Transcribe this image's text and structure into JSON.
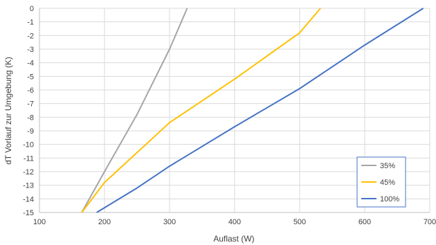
{
  "chart_data": {
    "type": "line",
    "title": "",
    "xlabel": "Auflast (W)",
    "ylabel": "dT Vorlauf zur Umgebung (K)",
    "xlim": [
      100,
      700
    ],
    "ylim": [
      -15,
      0
    ],
    "x_ticks": [
      "100",
      "200",
      "300",
      "400",
      "500",
      "600",
      "700"
    ],
    "y_ticks": [
      "0",
      "-1",
      "-2",
      "-3",
      "-4",
      "-5",
      "-6",
      "-7",
      "-8",
      "-9",
      "-10",
      "-11",
      "-12",
      "-13",
      "-14",
      "-15"
    ],
    "grid": true,
    "legend_position": "bottom-right",
    "series": [
      {
        "name": "35%",
        "color": "#a5a5a5",
        "points": [
          [
            165,
            -15
          ],
          [
            200,
            -12
          ],
          [
            250,
            -7.8
          ],
          [
            300,
            -3.0
          ],
          [
            327,
            0
          ]
        ]
      },
      {
        "name": "45%",
        "color": "#ffc000",
        "points": [
          [
            165,
            -15
          ],
          [
            200,
            -12.8
          ],
          [
            300,
            -8.4
          ],
          [
            400,
            -5.2
          ],
          [
            500,
            -1.8
          ],
          [
            532,
            0
          ]
        ]
      },
      {
        "name": "100%",
        "color": "#4472c4",
        "points": [
          [
            188,
            -15
          ],
          [
            250,
            -13.2
          ],
          [
            300,
            -11.6
          ],
          [
            400,
            -8.7
          ],
          [
            500,
            -5.9
          ],
          [
            600,
            -2.7
          ],
          [
            690,
            0
          ]
        ]
      }
    ]
  }
}
